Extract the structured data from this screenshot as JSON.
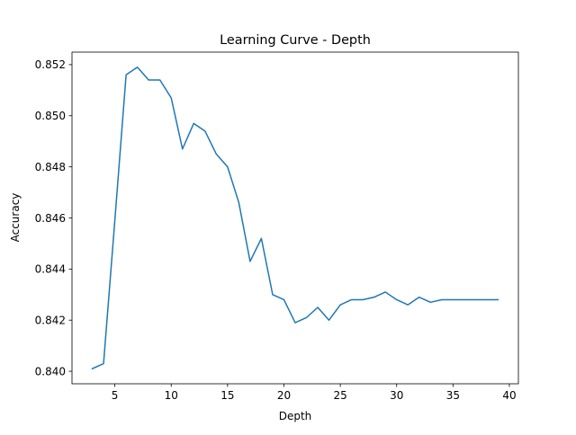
{
  "chart_data": {
    "type": "line",
    "title": "Learning Curve - Depth",
    "xlabel": "Depth",
    "ylabel": "Accuracy",
    "xlim": [
      1.2,
      40.8
    ],
    "ylim": [
      0.83951,
      0.85249
    ],
    "xticks": [
      5,
      10,
      15,
      20,
      25,
      30,
      35,
      40
    ],
    "xtick_labels": [
      "5",
      "10",
      "15",
      "20",
      "25",
      "30",
      "35",
      "40"
    ],
    "yticks": [
      0.84,
      0.842,
      0.844,
      0.846,
      0.848,
      0.85,
      0.852
    ],
    "ytick_labels": [
      "0.840",
      "0.842",
      "0.844",
      "0.846",
      "0.848",
      "0.850",
      "0.852"
    ],
    "grid": false,
    "series": [
      {
        "color": "#1f77b4",
        "x": [
          3,
          4,
          5,
          6,
          7,
          8,
          9,
          10,
          11,
          12,
          13,
          14,
          15,
          16,
          17,
          18,
          19,
          20,
          21,
          22,
          23,
          24,
          25,
          26,
          27,
          28,
          29,
          30,
          31,
          32,
          33,
          34,
          35,
          36,
          37,
          38,
          39
        ],
        "y": [
          0.8401,
          0.8403,
          0.8459,
          0.8516,
          0.8519,
          0.8514,
          0.8514,
          0.8507,
          0.8487,
          0.8497,
          0.8494,
          0.8485,
          0.848,
          0.8466,
          0.8443,
          0.8452,
          0.843,
          0.8428,
          0.8419,
          0.8421,
          0.8425,
          0.842,
          0.8426,
          0.8428,
          0.8428,
          0.8429,
          0.8431,
          0.8428,
          0.8426,
          0.8429,
          0.8427,
          0.8428,
          0.8428,
          0.8428,
          0.8428,
          0.8428,
          0.8428
        ]
      }
    ]
  }
}
